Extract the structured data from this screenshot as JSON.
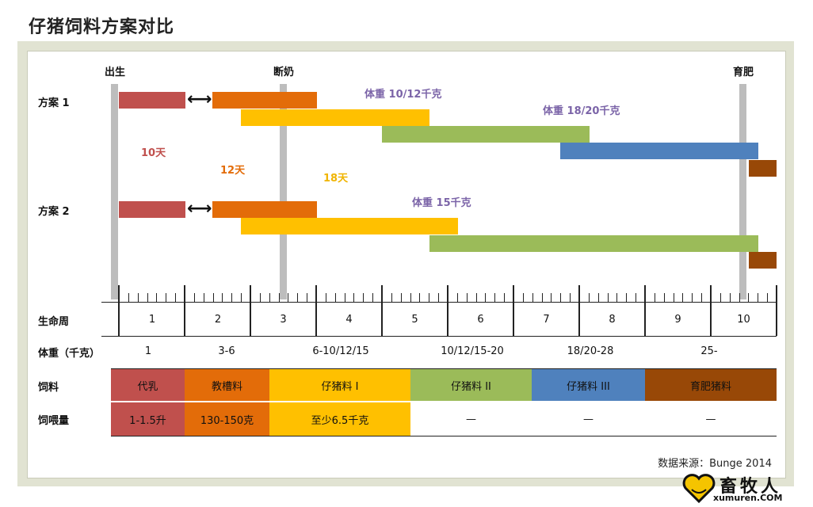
{
  "title": "仔猪饲料方案对比",
  "markers": {
    "birth": "出生",
    "weaning": "断奶",
    "finishing": "育肥"
  },
  "plans": {
    "plan1_label": "方案 1",
    "plan2_label": "方案 2"
  },
  "annotations": {
    "weight_10_12": "体重 10/12千克",
    "weight_18_20": "体重 18/20千克",
    "weight_15": "体重 15千克",
    "days_10": "10天",
    "days_12": "12天",
    "days_18": "18天"
  },
  "table": {
    "week_label": "生命周",
    "weeks": [
      "1",
      "2",
      "3",
      "4",
      "5",
      "6",
      "7",
      "8",
      "9",
      "10"
    ],
    "weight_label": "体重（千克）",
    "weights": [
      "1",
      "3-6",
      "6-10/12/15",
      "10/12/15-20",
      "18/20-28",
      "25-"
    ],
    "feed_label": "饲料",
    "feeds": [
      {
        "name": "代乳",
        "color": "#c0504d"
      },
      {
        "name": "教槽料",
        "color": "#e36c09"
      },
      {
        "name": "仔猪料 I",
        "color": "#ffc000"
      },
      {
        "name": "仔猪料 II",
        "color": "#9bbb59"
      },
      {
        "name": "仔猪料 III",
        "color": "#4f81bd"
      },
      {
        "name": "育肥猪料",
        "color": "#984807"
      }
    ],
    "amount_label": "饲喂量",
    "amounts": [
      "1-1.5升",
      "130-150克",
      "至少6.5千克",
      "—",
      "—",
      "—"
    ]
  },
  "source": "数据来源：Bunge 2014",
  "brand": {
    "name": "畜牧人",
    "url": "xumuren.COM"
  }
}
